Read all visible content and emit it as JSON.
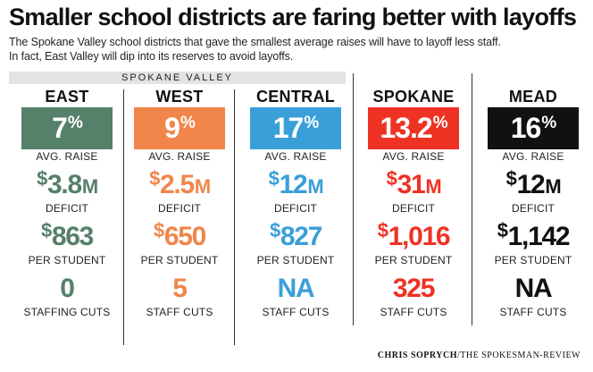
{
  "header": {
    "title": "Smaller school districts are faring better with layoffs",
    "subtitle_line1": "The Spokane Valley school districts that gave the smallest average raises will have to layoff less staff.",
    "subtitle_line2": "In fact, East Valley will dip into its reserves to avoid layoffs."
  },
  "region_label": "SPOKANE VALLEY",
  "labels": {
    "raise": "AVG. RAISE",
    "deficit": "DEFICIT",
    "per_student": "PER STUDENT"
  },
  "credit": {
    "author": "CHRIS SOPRYCH",
    "outlet": "/THE SPOKESMAN-REVIEW"
  },
  "chart_data": {
    "type": "table",
    "title": "Smaller school districts are faring better with layoffs",
    "districts": [
      {
        "name": "EAST",
        "color": "#55806a",
        "raise_value": "7",
        "raise_unit": "%",
        "raise_pct": 7,
        "deficit_currency": "$",
        "deficit_value": "3.8",
        "deficit_unit": "M",
        "deficit_millions": 3.8,
        "per_student_currency": "$",
        "per_student_value": "863",
        "per_student": 863,
        "cuts_display": "0",
        "cuts": 0,
        "cuts_label": "STAFFING CUTS"
      },
      {
        "name": "WEST",
        "color": "#f0864a",
        "raise_value": "9",
        "raise_unit": "%",
        "raise_pct": 9,
        "deficit_currency": "$",
        "deficit_value": "2.5",
        "deficit_unit": "M",
        "deficit_millions": 2.5,
        "per_student_currency": "$",
        "per_student_value": "650",
        "per_student": 650,
        "cuts_display": "5",
        "cuts": 5,
        "cuts_label": "STAFF CUTS"
      },
      {
        "name": "CENTRAL",
        "color": "#3a9fd8",
        "raise_value": "17",
        "raise_unit": "%",
        "raise_pct": 17,
        "deficit_currency": "$",
        "deficit_value": "12",
        "deficit_unit": "M",
        "deficit_millions": 12,
        "per_student_currency": "$",
        "per_student_value": "827",
        "per_student": 827,
        "cuts_display": "NA",
        "cuts": null,
        "cuts_label": "STAFF CUTS"
      },
      {
        "name": "SPOKANE",
        "color": "#ee3224",
        "raise_value": "13.2",
        "raise_unit": "%",
        "raise_pct": 13.2,
        "deficit_currency": "$",
        "deficit_value": "31",
        "deficit_unit": "M",
        "deficit_millions": 31,
        "per_student_currency": "$",
        "per_student_value": "1,016",
        "per_student": 1016,
        "cuts_display": "325",
        "cuts": 325,
        "cuts_label": "STAFF CUTS"
      },
      {
        "name": "MEAD",
        "color": "#111111",
        "raise_value": "16",
        "raise_unit": "%",
        "raise_pct": 16,
        "deficit_currency": "$",
        "deficit_value": "12",
        "deficit_unit": "M",
        "deficit_millions": 12,
        "per_student_currency": "$",
        "per_student_value": "1,142",
        "per_student": 1142,
        "cuts_display": "NA",
        "cuts": null,
        "cuts_label": "STAFF CUTS"
      }
    ]
  }
}
